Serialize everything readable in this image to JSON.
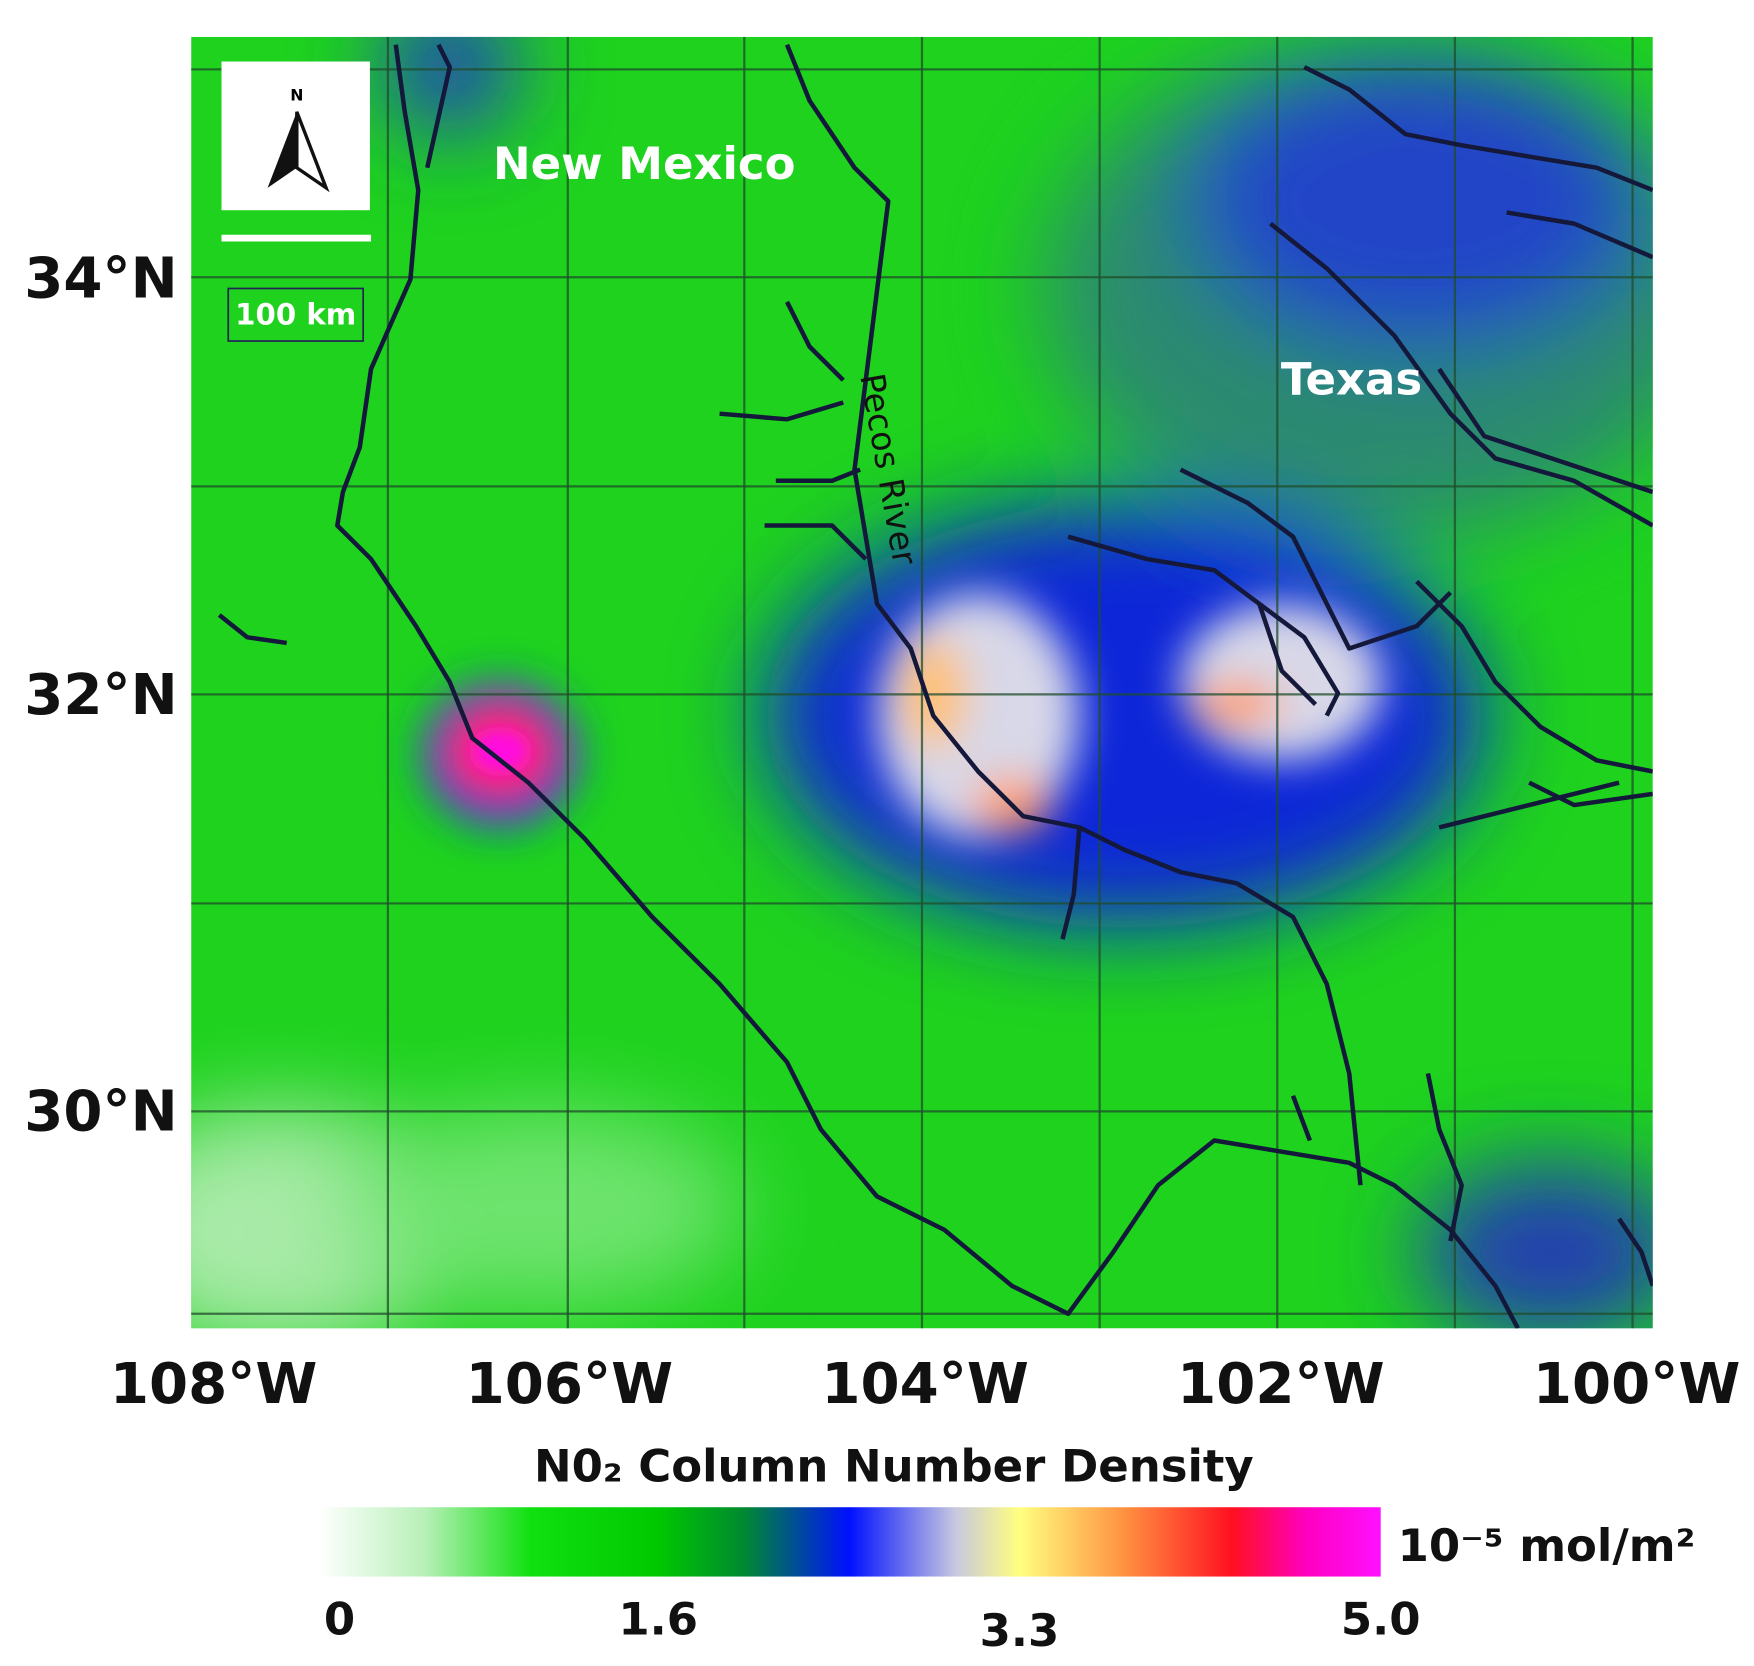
{
  "map": {
    "regions": {
      "new_mexico": "New Mexico",
      "texas": "Texas",
      "river": "Pecos River"
    },
    "north": "N",
    "scale": "100 km",
    "lat": [
      {
        "value": 34,
        "label": "34°N"
      },
      {
        "value": 32,
        "label": "32°N"
      },
      {
        "value": 30,
        "label": "30°N"
      }
    ],
    "lon": [
      {
        "value": 108,
        "label": "108°W"
      },
      {
        "value": 106,
        "label": "106°W"
      },
      {
        "value": 104,
        "label": "104°W"
      },
      {
        "value": 102,
        "label": "102°W"
      },
      {
        "value": 100,
        "label": "100°W"
      }
    ],
    "colorbar": {
      "title": "N0₂ Column Number Density",
      "unit": "10⁻⁵ mol/m²",
      "range": [
        0,
        5
      ],
      "ticks": [
        0,
        1.6,
        3.3,
        {
          "value": 5,
          "label": "5.0"
        }
      ]
    }
  }
}
